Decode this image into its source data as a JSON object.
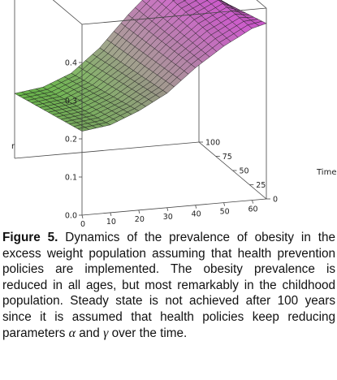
{
  "figure": {
    "chart_data": {
      "type": "surface",
      "axes": {
        "x": {
          "label": "",
          "range": [
            0,
            65
          ],
          "ticks": [
            "0",
            "10",
            "20",
            "30",
            "40",
            "50",
            "60"
          ]
        },
        "time": {
          "label": "Time",
          "range": [
            0,
            100
          ],
          "ticks": [
            "0",
            "25",
            "50",
            "75",
            "100"
          ]
        },
        "z": {
          "label": "r",
          "range": [
            0,
            0.5
          ],
          "ticks": [
            "0.0",
            "0.1",
            "0.2",
            "0.3",
            "0.4"
          ]
        }
      },
      "surface_samples": {
        "x": [
          0,
          10,
          20,
          30,
          40,
          50,
          60,
          65
        ],
        "time_0": [
          0.22,
          0.23,
          0.26,
          0.3,
          0.36,
          0.41,
          0.45,
          0.46
        ],
        "time_100": [
          0.17,
          0.18,
          0.21,
          0.27,
          0.35,
          0.42,
          0.45,
          0.4
        ]
      },
      "colors": {
        "low": "#6fd84a",
        "high": "#e55ce6",
        "mesh": "#1a1a1a",
        "box": "#444444"
      }
    }
  },
  "caption": {
    "label": "Figure 5.",
    "text_before_alpha": " Dynamics of the prevalence of obesity in the excess weight population assuming that health prevention policies are implemented. The obesity prevalence is reduced in all ages, but most remarkably in the childhood population. Steady state is not achieved after 100 years since it is assumed that health policies keep reducing parameters ",
    "alpha": "α",
    "and": " and ",
    "gamma": "γ",
    "text_after": " over the time."
  }
}
